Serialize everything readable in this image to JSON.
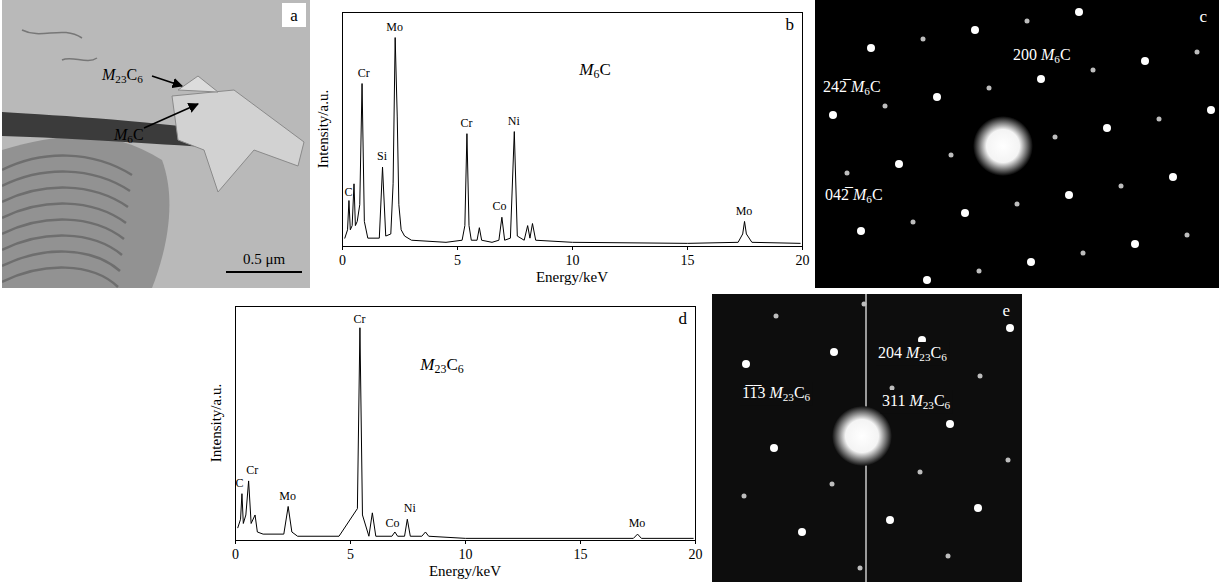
{
  "panels": [
    {
      "panel_label": "a",
      "type": "micrograph",
      "annotations": [
        {
          "text": "M23C6"
        },
        {
          "text": "M6C"
        }
      ],
      "scale_bar": "0.5 μm"
    },
    {
      "panel_label": "c",
      "type": "diffraction",
      "spots": [
        {
          "hkl": "242̅",
          "phase": "M6C"
        },
        {
          "hkl": "042̅",
          "phase": "M6C"
        },
        {
          "hkl": "200",
          "phase": "M6C"
        }
      ]
    },
    {
      "panel_label": "e",
      "type": "diffraction",
      "spots": [
        {
          "hkl": "1̅1̅3",
          "phase": "M23C6"
        },
        {
          "hkl": "204",
          "phase": "M23C6"
        },
        {
          "hkl": "311",
          "phase": "M23C6"
        }
      ]
    }
  ],
  "chart_data": [
    {
      "type": "line",
      "panel_label": "b",
      "title": "M6C",
      "x_label": "Energy/keV",
      "y_label": "Intensity/a.u.",
      "x": [
        0.1,
        0.22,
        0.28,
        0.34,
        0.42,
        0.5,
        0.56,
        0.64,
        0.75,
        0.85,
        0.95,
        1.1,
        1.6,
        1.74,
        1.88,
        2.1,
        2.2,
        2.29,
        2.38,
        2.45,
        2.55,
        2.7,
        3,
        4.5,
        5.2,
        5.32,
        5.41,
        5.5,
        5.6,
        5.85,
        5.95,
        6.05,
        6.5,
        6.8,
        6.93,
        7.05,
        7.3,
        7.47,
        7.6,
        7.9,
        8.05,
        8.15,
        8.26,
        8.4,
        10,
        15,
        17.2,
        17.4,
        17.48,
        17.56,
        17.8,
        19.9
      ],
      "values": [
        4,
        8,
        22,
        8,
        10,
        30,
        10,
        12,
        20,
        78,
        12,
        4,
        4,
        38,
        5,
        6,
        30,
        100,
        62,
        20,
        8,
        5,
        3,
        2,
        3,
        10,
        54,
        10,
        3,
        3,
        9,
        3,
        2,
        3,
        14,
        3,
        4,
        55,
        5,
        3,
        10,
        4,
        11,
        3,
        2,
        1.5,
        2,
        6,
        12,
        6,
        2,
        1.5
      ],
      "color": "#000000",
      "xlim": [
        0,
        20
      ],
      "xticks": [
        0,
        5,
        10,
        15,
        20
      ],
      "ylim": [
        0,
        112
      ],
      "yticks": [],
      "tick_labels": "x",
      "annotations": [
        {
          "text": "C",
          "x": 0.28,
          "y": 24
        },
        {
          "text": "Cr",
          "x": 0.95,
          "y": 81
        },
        {
          "text": "Si",
          "x": 1.74,
          "y": 41
        },
        {
          "text": "Mo",
          "x": 2.29,
          "y": 103
        },
        {
          "text": "Cr",
          "x": 5.41,
          "y": 57
        },
        {
          "text": "Co",
          "x": 6.85,
          "y": 17
        },
        {
          "text": "Ni",
          "x": 7.47,
          "y": 58
        },
        {
          "text": "Mo",
          "x": 17.48,
          "y": 15
        }
      ],
      "title_position": {
        "x": 11,
        "y": 82
      }
    },
    {
      "type": "line",
      "panel_label": "d",
      "title": "M23C6",
      "x_label": "Energy/keV",
      "y_label": "Intensity/a.u.",
      "x": [
        0.1,
        0.22,
        0.28,
        0.34,
        0.45,
        0.57,
        0.68,
        0.85,
        0.95,
        1.2,
        2.1,
        2.29,
        2.45,
        2.7,
        4.5,
        5.3,
        5.41,
        5.52,
        5.8,
        5.95,
        6.1,
        6.8,
        6.93,
        7.05,
        7.35,
        7.47,
        7.6,
        8.1,
        8.26,
        8.4,
        10,
        17.3,
        17.48,
        17.65,
        19.9
      ],
      "values": [
        6,
        10,
        22,
        8,
        12,
        28,
        8,
        12,
        4,
        3,
        3,
        16,
        4,
        2,
        2,
        15,
        100,
        12,
        2,
        13,
        2,
        2,
        4,
        2,
        2,
        10,
        2,
        2,
        4,
        2,
        1,
        1,
        3,
        1,
        1
      ],
      "color": "#000000",
      "xlim": [
        0,
        20
      ],
      "xticks": [
        0,
        5,
        10,
        15,
        20
      ],
      "ylim": [
        0,
        110
      ],
      "yticks": [],
      "tick_labels": "x",
      "annotations": [
        {
          "text": "C",
          "x": 0.2,
          "y": 25
        },
        {
          "text": "Cr",
          "x": 0.75,
          "y": 31
        },
        {
          "text": "Mo",
          "x": 2.29,
          "y": 19
        },
        {
          "text": "Cr",
          "x": 5.41,
          "y": 102
        },
        {
          "text": "Co",
          "x": 6.85,
          "y": 6
        },
        {
          "text": "Ni",
          "x": 7.6,
          "y": 13
        },
        {
          "text": "Mo",
          "x": 17.48,
          "y": 6
        }
      ],
      "title_position": {
        "x": 9,
        "y": 80
      }
    }
  ]
}
